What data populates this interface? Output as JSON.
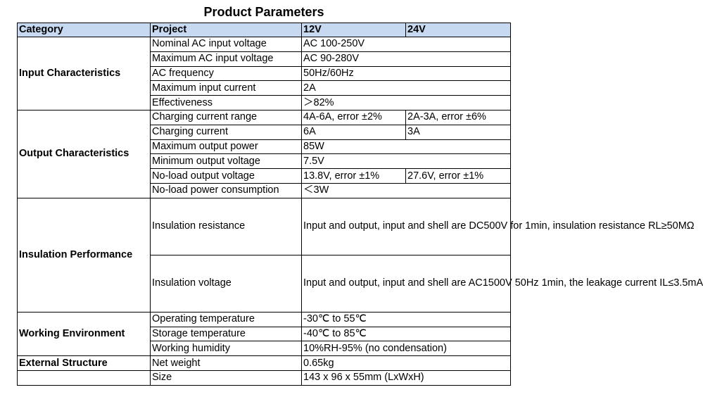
{
  "title": "Product Parameters",
  "headers": {
    "category": "Category",
    "project": "Project",
    "col_12v": "12V",
    "col_24v": "24V"
  },
  "categories": {
    "input": "Input Characteristics",
    "output": "Output Characteristics",
    "insulation": "Insulation Performance",
    "environment": "Working Environment",
    "structure": "External Structure"
  },
  "rows": {
    "nominal_ac": {
      "project": "Nominal AC input voltage",
      "value": "AC 100-250V"
    },
    "max_ac": {
      "project": "Maximum AC input voltage",
      "value": "AC 90-280V"
    },
    "ac_freq": {
      "project": "AC frequency",
      "value": "50Hz/60Hz"
    },
    "max_input_current": {
      "project": "Maximum input current",
      "value": "2A"
    },
    "effectiveness": {
      "project": "Effectiveness",
      "value": "＞82%"
    },
    "charging_range": {
      "project": "Charging current range",
      "v12": "4A-6A, error ±2%",
      "v24": "2A-3A, error ±6%"
    },
    "charging_current": {
      "project": "Charging current",
      "v12": "6A",
      "v24": "3A"
    },
    "max_output_power": {
      "project": "Maximum output power",
      "value": "85W"
    },
    "min_output_voltage": {
      "project": "Minimum output voltage",
      "value": "7.5V"
    },
    "noload_voltage": {
      "project": "No-load output voltage",
      "v12": "13.8V, error ±1%",
      "v24": "27.6V, error ±1%"
    },
    "noload_power": {
      "project": "No-load power consumption",
      "value": "＜3W"
    },
    "insulation_resistance": {
      "project": "Insulation resistance",
      "value": "Input and output, input and shell are DC500V for 1min, insulation resistance RL≥50MΩ"
    },
    "insulation_voltage": {
      "project": "Insulation voltage",
      "value": "Input and output, input and shell are AC1500V 50Hz 1min, the leakage current IL≤3.5mA"
    },
    "operating_temp": {
      "project": "Operating temperature",
      "value": "-30℃ to 55℃"
    },
    "storage_temp": {
      "project": "Storage temperature",
      "value": "-40℃ to 85℃"
    },
    "humidity": {
      "project": "Working humidity",
      "value": "10%RH-95% (no condensation)"
    },
    "net_weight": {
      "project": "Net weight",
      "value": "0.65kg"
    },
    "size": {
      "project": "Size",
      "value": "143 x 96 x 55mm (LxWxH)"
    }
  }
}
